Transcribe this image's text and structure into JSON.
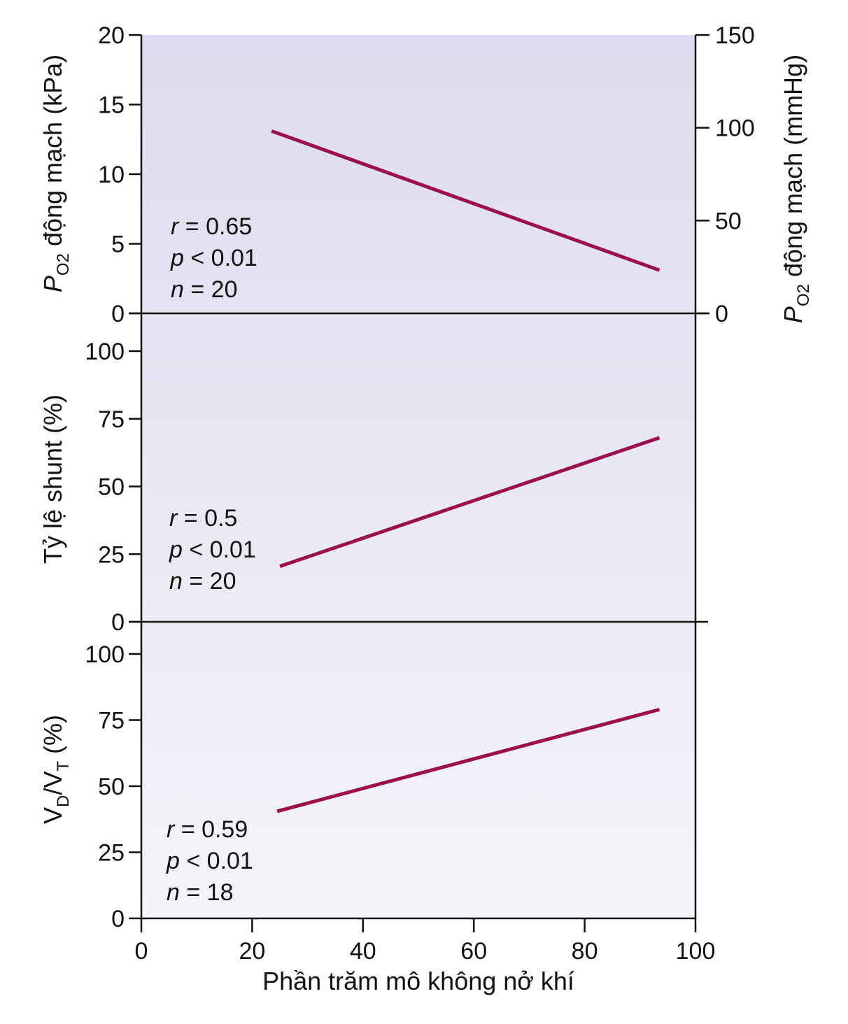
{
  "chart_data": {
    "type": "line",
    "x_axis": {
      "label": "Phần trăm mô không nở khí",
      "range": [
        0,
        100
      ],
      "ticks": [
        "0",
        "20",
        "40",
        "60",
        "80",
        "100"
      ]
    },
    "background_gradient": [
      "#dcdcee",
      "#f4f4fa"
    ],
    "line_color": "#9a0f4c",
    "panels": [
      {
        "y_label_left": {
          "italic": "P",
          "sub": "O2",
          "rest": " động mạch (kPa)"
        },
        "y_range": [
          0,
          20
        ],
        "y_ticks": [
          "20",
          "15",
          "10",
          "5",
          "0"
        ],
        "y_label_right": {
          "italic": "P",
          "sub": "O2",
          "rest": " động mạch (mmHg)"
        },
        "y_right_range": [
          0,
          150
        ],
        "y_right_ticks": [
          "150",
          "100",
          "50",
          "0"
        ],
        "line": {
          "x": [
            23.5,
            93.5
          ],
          "y": [
            13.1,
            3.1
          ]
        },
        "stats": {
          "r": {
            "var": "r",
            "text": " = 0.65"
          },
          "p": {
            "var": "p",
            "text": " < 0.01"
          },
          "n": {
            "var": "n",
            "text": " = 20"
          }
        }
      },
      {
        "y_label_left": {
          "text": "Tỷ lệ shunt (%)"
        },
        "y_range": [
          0,
          100
        ],
        "y_ticks": [
          "100",
          "75",
          "50",
          "25",
          "0"
        ],
        "line": {
          "x": [
            25,
            93.5
          ],
          "y": [
            20.5,
            68
          ]
        },
        "stats": {
          "r": {
            "var": "r",
            "text": " = 0.5"
          },
          "p": {
            "var": "p",
            "text": " < 0.01"
          },
          "n": {
            "var": "n",
            "text": " = 20"
          }
        }
      },
      {
        "y_label_left": {
          "v1": "V",
          "s1": "D",
          "mid": "/V",
          "s2": "T",
          "rest": " (%)"
        },
        "y_range": [
          0,
          100
        ],
        "y_ticks": [
          "100",
          "75",
          "50",
          "25",
          "0"
        ],
        "line": {
          "x": [
            24.5,
            93.5
          ],
          "y": [
            40.5,
            79
          ]
        },
        "stats": {
          "r": {
            "var": "r",
            "text": " = 0.59"
          },
          "p": {
            "var": "p",
            "text": " < 0.01"
          },
          "n": {
            "var": "n",
            "text": " = 18"
          }
        }
      }
    ]
  }
}
